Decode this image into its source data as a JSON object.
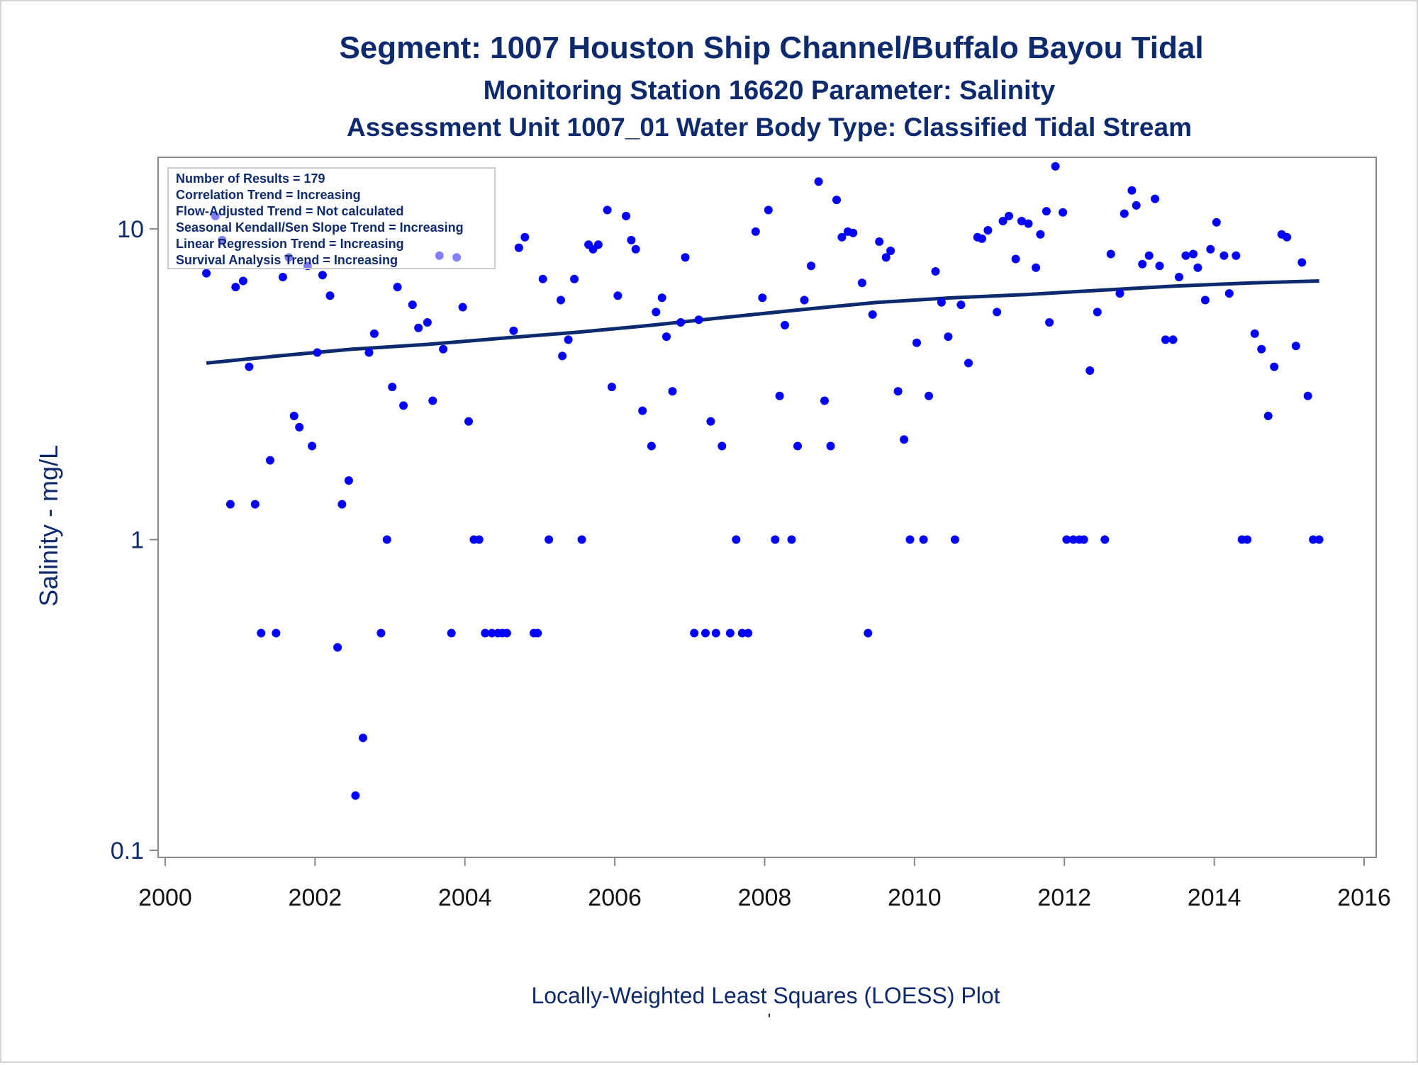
{
  "chart_data": {
    "type": "scatter",
    "title": "Segment: 1007  Houston Ship Channel/Buffalo Bayou Tidal",
    "subtitle_1": "Monitoring Station 16620 Parameter: Salinity",
    "subtitle_2": "Assessment Unit 1007_01   Water Body Type: Classified Tidal Stream",
    "xlabel": "Locally-Weighted Least Squares (LOESS) Plot",
    "ylabel": "Salinity - mg/L",
    "footnote": "'",
    "xlim": [
      2000,
      2016
    ],
    "ylim": [
      0.1,
      17
    ],
    "y_scale": "log",
    "x_ticks": [
      "2000",
      "2002",
      "2004",
      "2006",
      "2008",
      "2010",
      "2012",
      "2014",
      "2016"
    ],
    "y_ticks": [
      "0.1",
      "1",
      "10"
    ],
    "grid": false,
    "legend_position": "top-left",
    "info_box": [
      "Number of Results = 179",
      "Correlation Trend = Increasing",
      "Flow-Adjusted Trend = Not calculated",
      "Seasonal Kendall/Sen Slope Trend = Increasing",
      "Linear Regression Trend = Increasing",
      "Survival Analysis Trend = Increasing"
    ],
    "colors": {
      "points": "#0000ff",
      "trend_line": "#0d2a6e",
      "text": "#0d2a6e",
      "frame": "#8a8a8a"
    },
    "series": [
      {
        "type": "scatter",
        "points": [
          [
            2000.55,
            7.2
          ],
          [
            2000.67,
            11.0
          ],
          [
            2000.76,
            9.2
          ],
          [
            2000.87,
            1.3
          ],
          [
            2000.94,
            6.5
          ],
          [
            2001.04,
            6.8
          ],
          [
            2001.12,
            3.6
          ],
          [
            2001.2,
            1.3
          ],
          [
            2001.28,
            0.5
          ],
          [
            2001.4,
            1.8
          ],
          [
            2001.48,
            0.5
          ],
          [
            2001.57,
            7.0
          ],
          [
            2001.65,
            8.1
          ],
          [
            2001.72,
            2.5
          ],
          [
            2001.79,
            2.3
          ],
          [
            2001.9,
            7.6
          ],
          [
            2001.96,
            2.0
          ],
          [
            2002.03,
            4.0
          ],
          [
            2002.1,
            7.1
          ],
          [
            2002.2,
            6.1
          ],
          [
            2002.3,
            0.45
          ],
          [
            2002.36,
            1.3
          ],
          [
            2002.45,
            1.55
          ],
          [
            2002.54,
            0.15
          ],
          [
            2002.64,
            0.23
          ],
          [
            2002.72,
            4.0
          ],
          [
            2002.79,
            4.6
          ],
          [
            2002.88,
            0.5
          ],
          [
            2002.96,
            1.0
          ],
          [
            2003.03,
            3.1
          ],
          [
            2003.1,
            6.5
          ],
          [
            2003.18,
            2.7
          ],
          [
            2003.3,
            5.7
          ],
          [
            2003.38,
            4.8
          ],
          [
            2003.5,
            5.0
          ],
          [
            2003.57,
            2.8
          ],
          [
            2003.66,
            8.2
          ],
          [
            2003.71,
            4.1
          ],
          [
            2003.82,
            0.5
          ],
          [
            2003.89,
            8.1
          ],
          [
            2003.97,
            5.6
          ],
          [
            2004.05,
            2.4
          ],
          [
            2004.12,
            1.0
          ],
          [
            2004.19,
            1.0
          ],
          [
            2004.27,
            0.5
          ],
          [
            2004.36,
            0.5
          ],
          [
            2004.44,
            0.5
          ],
          [
            2004.5,
            0.5
          ],
          [
            2004.56,
            0.5
          ],
          [
            2004.65,
            4.7
          ],
          [
            2004.72,
            8.7
          ],
          [
            2004.8,
            9.4
          ],
          [
            2004.92,
            0.5
          ],
          [
            2004.97,
            0.5
          ],
          [
            2005.04,
            6.9
          ],
          [
            2005.12,
            1.0
          ],
          [
            2005.28,
            5.9
          ],
          [
            2005.3,
            3.9
          ],
          [
            2005.38,
            4.4
          ],
          [
            2005.46,
            6.9
          ],
          [
            2005.56,
            1.0
          ],
          [
            2005.65,
            8.9
          ],
          [
            2005.71,
            8.6
          ],
          [
            2005.78,
            8.9
          ],
          [
            2005.9,
            11.5
          ],
          [
            2005.96,
            3.1
          ],
          [
            2006.04,
            6.1
          ],
          [
            2006.15,
            11.0
          ],
          [
            2006.22,
            9.2
          ],
          [
            2006.28,
            8.6
          ],
          [
            2006.37,
            2.6
          ],
          [
            2006.49,
            2.0
          ],
          [
            2006.55,
            5.4
          ],
          [
            2006.63,
            6.0
          ],
          [
            2006.69,
            4.5
          ],
          [
            2006.77,
            3.0
          ],
          [
            2006.88,
            5.0
          ],
          [
            2006.94,
            8.1
          ],
          [
            2007.06,
            0.5
          ],
          [
            2007.12,
            5.1
          ],
          [
            2007.21,
            0.5
          ],
          [
            2007.28,
            2.4
          ],
          [
            2007.35,
            0.5
          ],
          [
            2007.43,
            2.0
          ],
          [
            2007.54,
            0.5
          ],
          [
            2007.62,
            1.0
          ],
          [
            2007.7,
            0.5
          ],
          [
            2007.78,
            0.5
          ],
          [
            2007.88,
            9.8
          ],
          [
            2007.97,
            6.0
          ],
          [
            2008.05,
            11.5
          ],
          [
            2008.14,
            1.0
          ],
          [
            2008.2,
            2.9
          ],
          [
            2008.27,
            4.9
          ],
          [
            2008.36,
            1.0
          ],
          [
            2008.44,
            2.0
          ],
          [
            2008.53,
            5.9
          ],
          [
            2008.62,
            7.6
          ],
          [
            2008.72,
            14.2
          ],
          [
            2008.8,
            2.8
          ],
          [
            2008.88,
            2.0
          ],
          [
            2008.96,
            12.4
          ],
          [
            2009.03,
            9.4
          ],
          [
            2009.11,
            9.8
          ],
          [
            2009.18,
            9.7
          ],
          [
            2009.3,
            6.7
          ],
          [
            2009.38,
            0.5
          ],
          [
            2009.44,
            5.3
          ],
          [
            2009.53,
            9.1
          ],
          [
            2009.62,
            8.1
          ],
          [
            2009.68,
            8.5
          ],
          [
            2009.78,
            3.0
          ],
          [
            2009.86,
            2.1
          ],
          [
            2009.94,
            1.0
          ],
          [
            2010.03,
            4.3
          ],
          [
            2010.12,
            1.0
          ],
          [
            2010.19,
            2.9
          ],
          [
            2010.28,
            7.3
          ],
          [
            2010.36,
            5.8
          ],
          [
            2010.45,
            4.5
          ],
          [
            2010.54,
            1.0
          ],
          [
            2010.62,
            5.7
          ],
          [
            2010.72,
            3.7
          ],
          [
            2010.84,
            9.4
          ],
          [
            2010.9,
            9.3
          ],
          [
            2010.98,
            9.9
          ],
          [
            2011.1,
            5.4
          ],
          [
            2011.18,
            10.6
          ],
          [
            2011.26,
            11.0
          ],
          [
            2011.35,
            8.0
          ],
          [
            2011.43,
            10.6
          ],
          [
            2011.52,
            10.4
          ],
          [
            2011.62,
            7.5
          ],
          [
            2011.68,
            9.6
          ],
          [
            2011.76,
            11.4
          ],
          [
            2011.8,
            5.0
          ],
          [
            2011.88,
            15.9
          ],
          [
            2011.98,
            11.3
          ],
          [
            2012.03,
            1.0
          ],
          [
            2012.12,
            1.0
          ],
          [
            2012.2,
            1.0
          ],
          [
            2012.26,
            1.0
          ],
          [
            2012.34,
            3.5
          ],
          [
            2012.44,
            5.4
          ],
          [
            2012.54,
            1.0
          ],
          [
            2012.62,
            8.3
          ],
          [
            2012.74,
            6.2
          ],
          [
            2012.8,
            11.2
          ],
          [
            2012.9,
            13.3
          ],
          [
            2012.96,
            11.9
          ],
          [
            2013.04,
            7.7
          ],
          [
            2013.13,
            8.2
          ],
          [
            2013.21,
            12.5
          ],
          [
            2013.27,
            7.6
          ],
          [
            2013.35,
            4.4
          ],
          [
            2013.45,
            4.4
          ],
          [
            2013.53,
            7.0
          ],
          [
            2013.62,
            8.2
          ],
          [
            2013.72,
            8.3
          ],
          [
            2013.78,
            7.5
          ],
          [
            2013.88,
            5.9
          ],
          [
            2013.95,
            8.6
          ],
          [
            2014.03,
            10.5
          ],
          [
            2014.13,
            8.2
          ],
          [
            2014.2,
            6.2
          ],
          [
            2014.29,
            8.2
          ],
          [
            2014.37,
            1.0
          ],
          [
            2014.44,
            1.0
          ],
          [
            2014.54,
            4.6
          ],
          [
            2014.63,
            4.1
          ],
          [
            2014.72,
            2.5
          ],
          [
            2014.8,
            3.6
          ],
          [
            2014.9,
            9.6
          ],
          [
            2014.97,
            9.4
          ],
          [
            2015.09,
            4.2
          ],
          [
            2015.17,
            7.8
          ],
          [
            2015.25,
            2.9
          ],
          [
            2015.32,
            1.0
          ],
          [
            2015.4,
            1.0
          ]
        ]
      },
      {
        "type": "line",
        "points": [
          [
            2000.55,
            3.7
          ],
          [
            2001.5,
            3.9
          ],
          [
            2002.5,
            4.1
          ],
          [
            2003.5,
            4.25
          ],
          [
            2004.5,
            4.45
          ],
          [
            2005.5,
            4.65
          ],
          [
            2006.5,
            4.9
          ],
          [
            2007.5,
            5.2
          ],
          [
            2008.5,
            5.5
          ],
          [
            2009.5,
            5.8
          ],
          [
            2010.5,
            6.0
          ],
          [
            2011.5,
            6.15
          ],
          [
            2012.5,
            6.35
          ],
          [
            2013.5,
            6.55
          ],
          [
            2014.5,
            6.7
          ],
          [
            2015.4,
            6.8
          ]
        ]
      }
    ]
  }
}
